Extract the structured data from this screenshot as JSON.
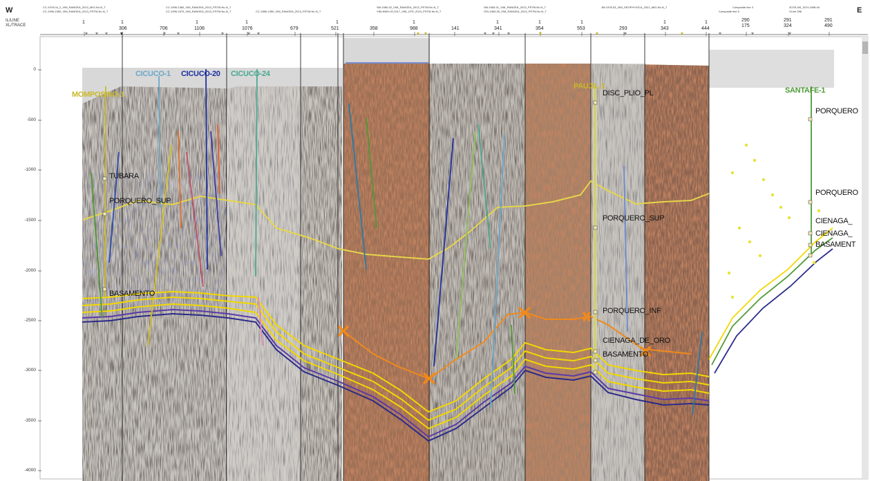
{
  "section": {
    "west_label": "W",
    "east_label": "E",
    "inline_label": "IL/LINE",
    "trace_label": "XL/TRACE"
  },
  "header": {
    "line_names": [
      "CC-1976-04_2_VIM_RANGEA_2013_MIG-Nv-N_T",
      "CC-1996-1950_VIM_RANGEA_2013_PSTM-Nv-N_T",
      "CC-1996-1360_VIM_RANGEA_2013_PSTM-Nv-N_T",
      "CC-1996-1670_VIM_RANGEA_2013_PSTM-Nv-N_T",
      "CC-1986-1350_VIM_RANGEA_2013_PSTM-Nv-N_T",
      "SM-1980-02_VIM_RANGEA_2013_PSTM-Nv-N_T",
      "VIM-NWH-02-2017_VIM_UTR_2019_PSTM-Nv-N_T",
      "SM-1983-01_VIM_RANGEA_2013_PSTM-Nv-N_T",
      "GSI-1983-26_VIM_RANGEA_2013_PSTM-Nv-N_T",
      "JM-1978-03_VIM_GEOPHYSICA_2021_MIG-Nv-N_T",
      "Composite line 3",
      "Composite line 5",
      "3CSS-NS_SCH-1998-04",
      "XLine 396"
    ],
    "inline_numbers": [
      "1",
      "1",
      "1",
      "1",
      "1",
      "1",
      "1",
      "1",
      "1",
      "1",
      "1",
      "290",
      "291",
      "291"
    ],
    "trace_numbers": [
      "306",
      "706",
      "1106",
      "1076",
      "679",
      "521",
      "358",
      "988",
      "141",
      "341",
      "354",
      "553",
      "293",
      "343",
      "444",
      "175",
      "324",
      "490"
    ]
  },
  "depth_axis": {
    "ticks": [
      "0",
      "-500",
      "-1000",
      "-1500",
      "-2000",
      "-2500",
      "-3000",
      "-3500",
      "-4000"
    ]
  },
  "wells": [
    {
      "name": "MOMPOSINO-1",
      "color": "#c9b829"
    },
    {
      "name": "CICUCO-1",
      "color": "#6aa8c8"
    },
    {
      "name": "CICUCO-20",
      "color": "#1d2fa0"
    },
    {
      "name": "CICUCO-24",
      "color": "#4aa890"
    },
    {
      "name": "PAUJIL-1",
      "color": "#c9b829"
    },
    {
      "name": "SANTAFE-1",
      "color": "#4f9a36"
    }
  ],
  "horizons": [
    {
      "name": "TUBARA",
      "color": "#111111"
    },
    {
      "name": "PORQUERO_SUP",
      "color": "#111111"
    },
    {
      "name": "BASAMENTO",
      "color": "#111111"
    },
    {
      "name": "DISC_PLIO_PL",
      "color": "#111111"
    },
    {
      "name": "PORQUERO_SUP",
      "color": "#111111"
    },
    {
      "name": "PORQUERO_INF",
      "color": "#111111"
    },
    {
      "name": "CIENAGA_DE_ORO",
      "color": "#111111"
    },
    {
      "name": "BASAMENTO",
      "color": "#111111"
    },
    {
      "name": "PORQUERO",
      "color": "#111111"
    },
    {
      "name": "PORQUERO",
      "color": "#111111"
    },
    {
      "name": "CIENAGA_",
      "color": "#111111"
    },
    {
      "name": "CIENAGA_",
      "color": "#111111"
    },
    {
      "name": "BASAMENT",
      "color": "#111111"
    }
  ],
  "colors": {
    "tubara": "#e8d84a",
    "yellow_horizon": "#f2d800",
    "orange_horizon": "#f08a1c",
    "basement_blue": "#2a2a8a",
    "fault_x": "#f08a1c"
  }
}
